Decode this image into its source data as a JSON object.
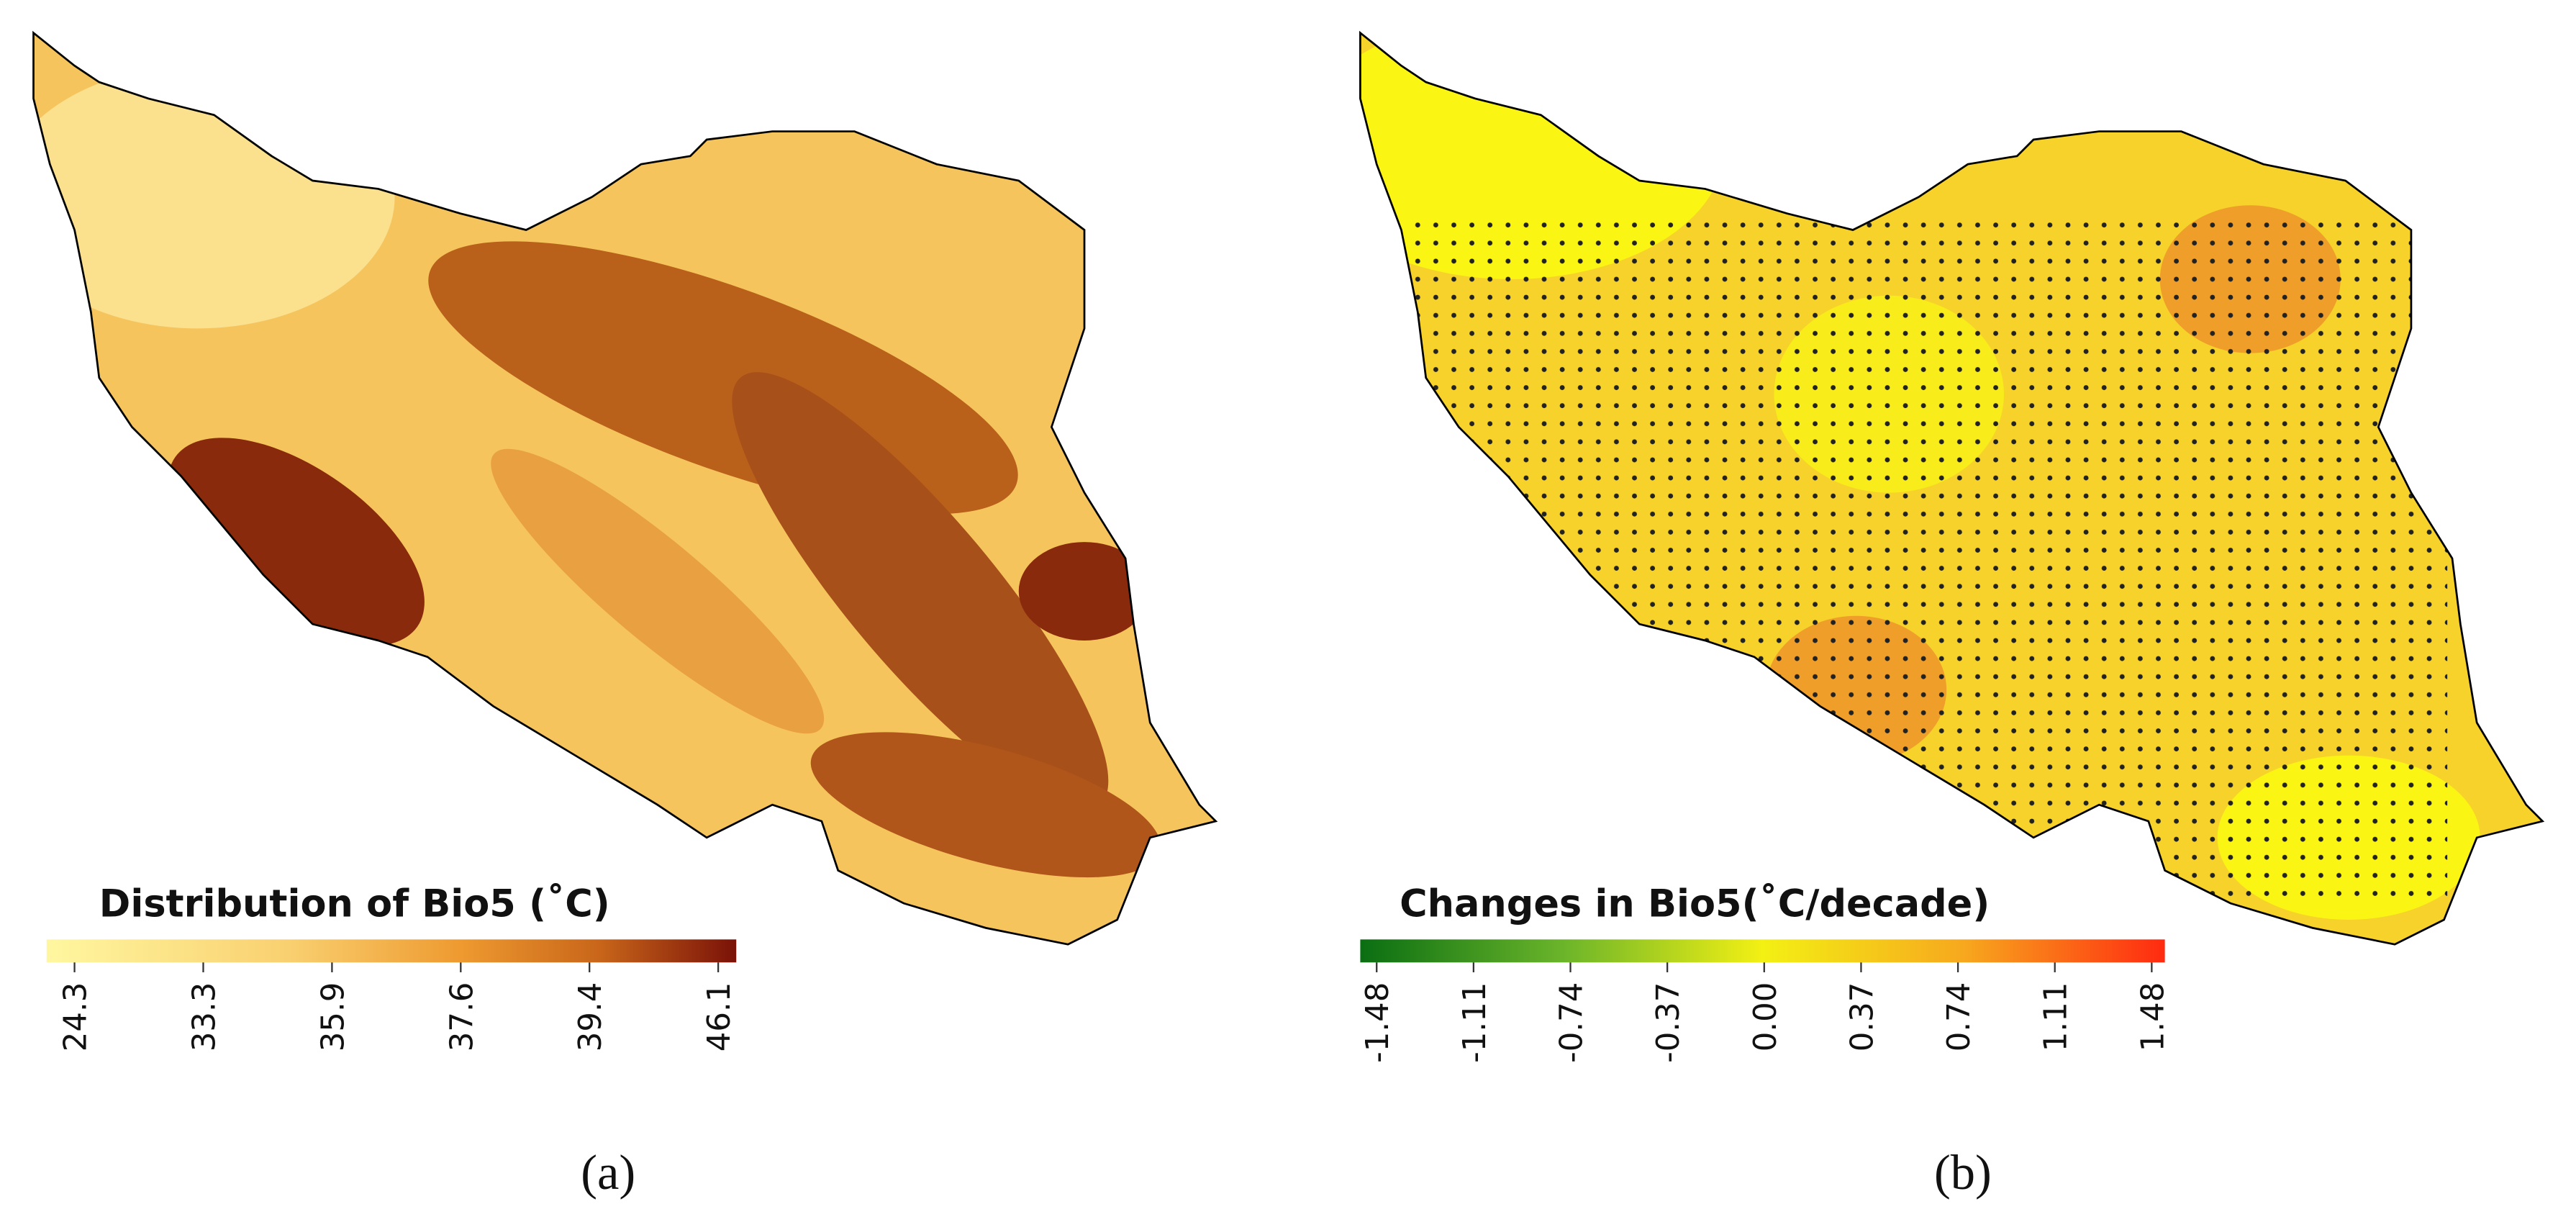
{
  "panels": [
    {
      "legend": {
        "title": "Distribution of Bio5 (˚C)",
        "ticks": [
          "24.3",
          "33.3",
          "35.9",
          "37.6",
          "39.4",
          "46.1"
        ]
      },
      "caption": "(a)"
    },
    {
      "legend": {
        "title": "Changes in Bio5(˚C/decade)",
        "ticks": [
          "-1.48",
          "-1.11",
          "-0.74",
          "-0.37",
          "0.00",
          "0.37",
          "0.74",
          "1.11",
          "1.48"
        ]
      },
      "caption": "(b)"
    }
  ]
}
